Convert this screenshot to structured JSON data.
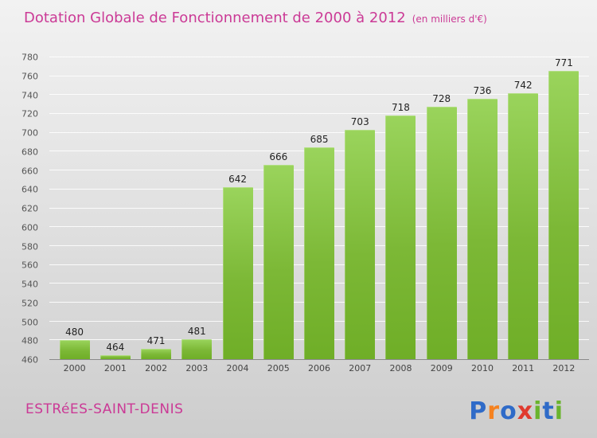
{
  "title": "Dotation Globale de Fonctionnement de 2000 à 2012",
  "subtitle": "(en milliers d'€)",
  "footer": {
    "commune": "ESTRéES-SAINT-DENIS"
  },
  "logo": {
    "name": "Proxiti",
    "letters": [
      {
        "ch": "P",
        "color": "#2f6bc8"
      },
      {
        "ch": "r",
        "color": "#f58220"
      },
      {
        "ch": "o",
        "color": "#2f6bc8"
      },
      {
        "ch": "x",
        "color": "#e03a2e"
      },
      {
        "ch": "i",
        "color": "#6ab42d"
      },
      {
        "ch": "t",
        "color": "#2f6bc8"
      },
      {
        "ch": "i",
        "color": "#6ab42d"
      }
    ]
  },
  "colors": {
    "title": "#cb3a96",
    "bar_top": "#9ad45c",
    "bar_bottom": "#6fae27",
    "gridline": "#ffffff",
    "axis_text": "#555555",
    "value_text": "#222222"
  },
  "chart_data": {
    "type": "bar",
    "title": "Dotation Globale de Fonctionnement de 2000 à 2012",
    "subtitle": "(en milliers d'€)",
    "categories": [
      "2000",
      "2001",
      "2002",
      "2003",
      "2004",
      "2005",
      "2006",
      "2007",
      "2008",
      "2009",
      "2010",
      "2011",
      "2012"
    ],
    "values": [
      480,
      464,
      471,
      481,
      642,
      666,
      685,
      703,
      718,
      728,
      736,
      742,
      771
    ],
    "xlabel": "",
    "ylabel": "",
    "ylim": [
      460,
      780
    ],
    "ytick_step": 20,
    "grid": true,
    "legend": "none"
  }
}
